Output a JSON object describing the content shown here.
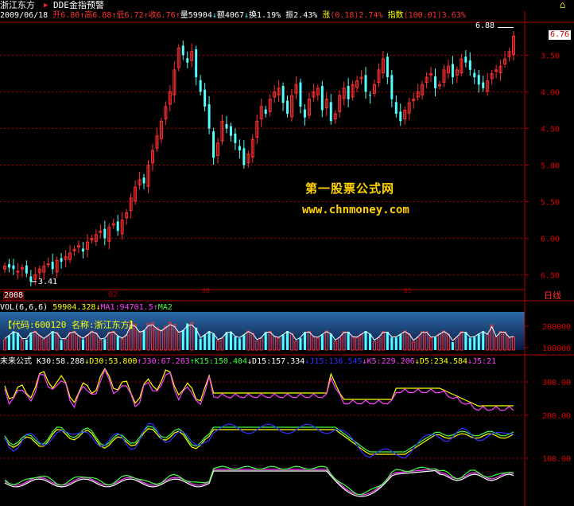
{
  "header": {
    "stock_name": "浙江东方",
    "indicator_name": "DDE金指预警"
  },
  "info": {
    "date": "2009/06/18",
    "open_label": "开",
    "open": "6.80",
    "high_label": "高",
    "high": "6.88",
    "low_label": "低",
    "low": "6.72",
    "close_label": "收",
    "close": "6.76",
    "volume_label": "量",
    "volume": "59904",
    "amount_label": "额",
    "amount": "4067",
    "turnover_label": "换",
    "turnover": "1.19%",
    "amplitude_label": "振",
    "amplitude": "2.43%",
    "change_label": "涨",
    "change": "(0.18)",
    "change_pct": "2.74%",
    "index_label": "指数",
    "index": "(100.01)",
    "index_pct": "3.63%"
  },
  "price_panel": {
    "high_marker": "6.88",
    "low_marker": "3.41",
    "current_price": "6.76",
    "year_label": "2008",
    "month_label": "02",
    "month_label_2": "05",
    "month_label_3": "08",
    "period_label": "日线",
    "y_ticks": [
      "6.50",
      "6.00",
      "5.50",
      "5.00",
      "4.50",
      "4.00",
      "3.50"
    ]
  },
  "watermark": {
    "line1": "第一股票公式网",
    "line2": "www.chnmoney.com"
  },
  "volume_panel": {
    "title": "VOL(6,6,6)",
    "value": "59904.328",
    "ma1": "MA1:94701.5",
    "ma2": "MA2",
    "code_label": "【代码:600120 名称:浙江东方】",
    "y_ticks": [
      "200000",
      "100000"
    ]
  },
  "indicator_panel": {
    "title": "未来公式",
    "k30": "K30:58.288",
    "d30": "D30:53.800",
    "j30": "J30:67.263",
    "k15": "K15:150.404",
    "d15": "D15:157.334",
    "j15": "J15:136.545",
    "k5": "K5:229.206",
    "d5": "D5:234.584",
    "j5": "J5:21",
    "y_ticks": [
      "300.00",
      "200.00",
      "100.00"
    ]
  },
  "colors": {
    "up": "#ff3030",
    "down": "#54ffff",
    "grid": "#b00000",
    "yellow": "#ffff00",
    "magenta": "#ff40ff",
    "green": "#40ff40",
    "blue": "#3030ff"
  },
  "chart_data": {
    "type": "candlestick",
    "title": "",
    "ylim": [
      3.3,
      6.95
    ],
    "y_ticks": [
      3.5,
      4.0,
      4.5,
      5.0,
      5.5,
      6.0,
      6.5
    ],
    "close_series": [
      3.62,
      3.6,
      3.58,
      3.55,
      3.6,
      3.52,
      3.41,
      3.5,
      3.58,
      3.62,
      3.65,
      3.58,
      3.7,
      3.68,
      3.75,
      3.8,
      3.85,
      3.9,
      3.82,
      3.95,
      4.0,
      4.05,
      4.1,
      4.0,
      4.15,
      4.2,
      4.1,
      4.25,
      4.35,
      4.55,
      4.7,
      4.8,
      4.75,
      5.0,
      5.2,
      5.4,
      5.6,
      5.8,
      6.0,
      6.3,
      6.6,
      6.5,
      6.4,
      6.55,
      6.2,
      6.0,
      5.8,
      5.5,
      5.1,
      5.3,
      5.6,
      5.5,
      5.4,
      5.3,
      5.2,
      5.0,
      5.15,
      5.35,
      5.6,
      5.8,
      5.7,
      5.9,
      6.0,
      6.05,
      5.85,
      5.7,
      5.95,
      6.1,
      5.8,
      5.65,
      5.9,
      6.0,
      6.05,
      5.75,
      5.9,
      5.6,
      5.7,
      5.95,
      6.05,
      5.9,
      6.1,
      6.15,
      6.2,
      6.0,
      5.95,
      6.1,
      6.3,
      6.45,
      6.2,
      5.9,
      5.7,
      5.6,
      5.75,
      5.85,
      5.9,
      6.0,
      6.1,
      6.2,
      6.25,
      6.05,
      6.1,
      6.3,
      6.35,
      6.2,
      6.3,
      6.45,
      6.4,
      6.3,
      6.2,
      6.1,
      6.05,
      6.15,
      6.25,
      6.3,
      6.35,
      6.45,
      6.55,
      6.76
    ]
  }
}
